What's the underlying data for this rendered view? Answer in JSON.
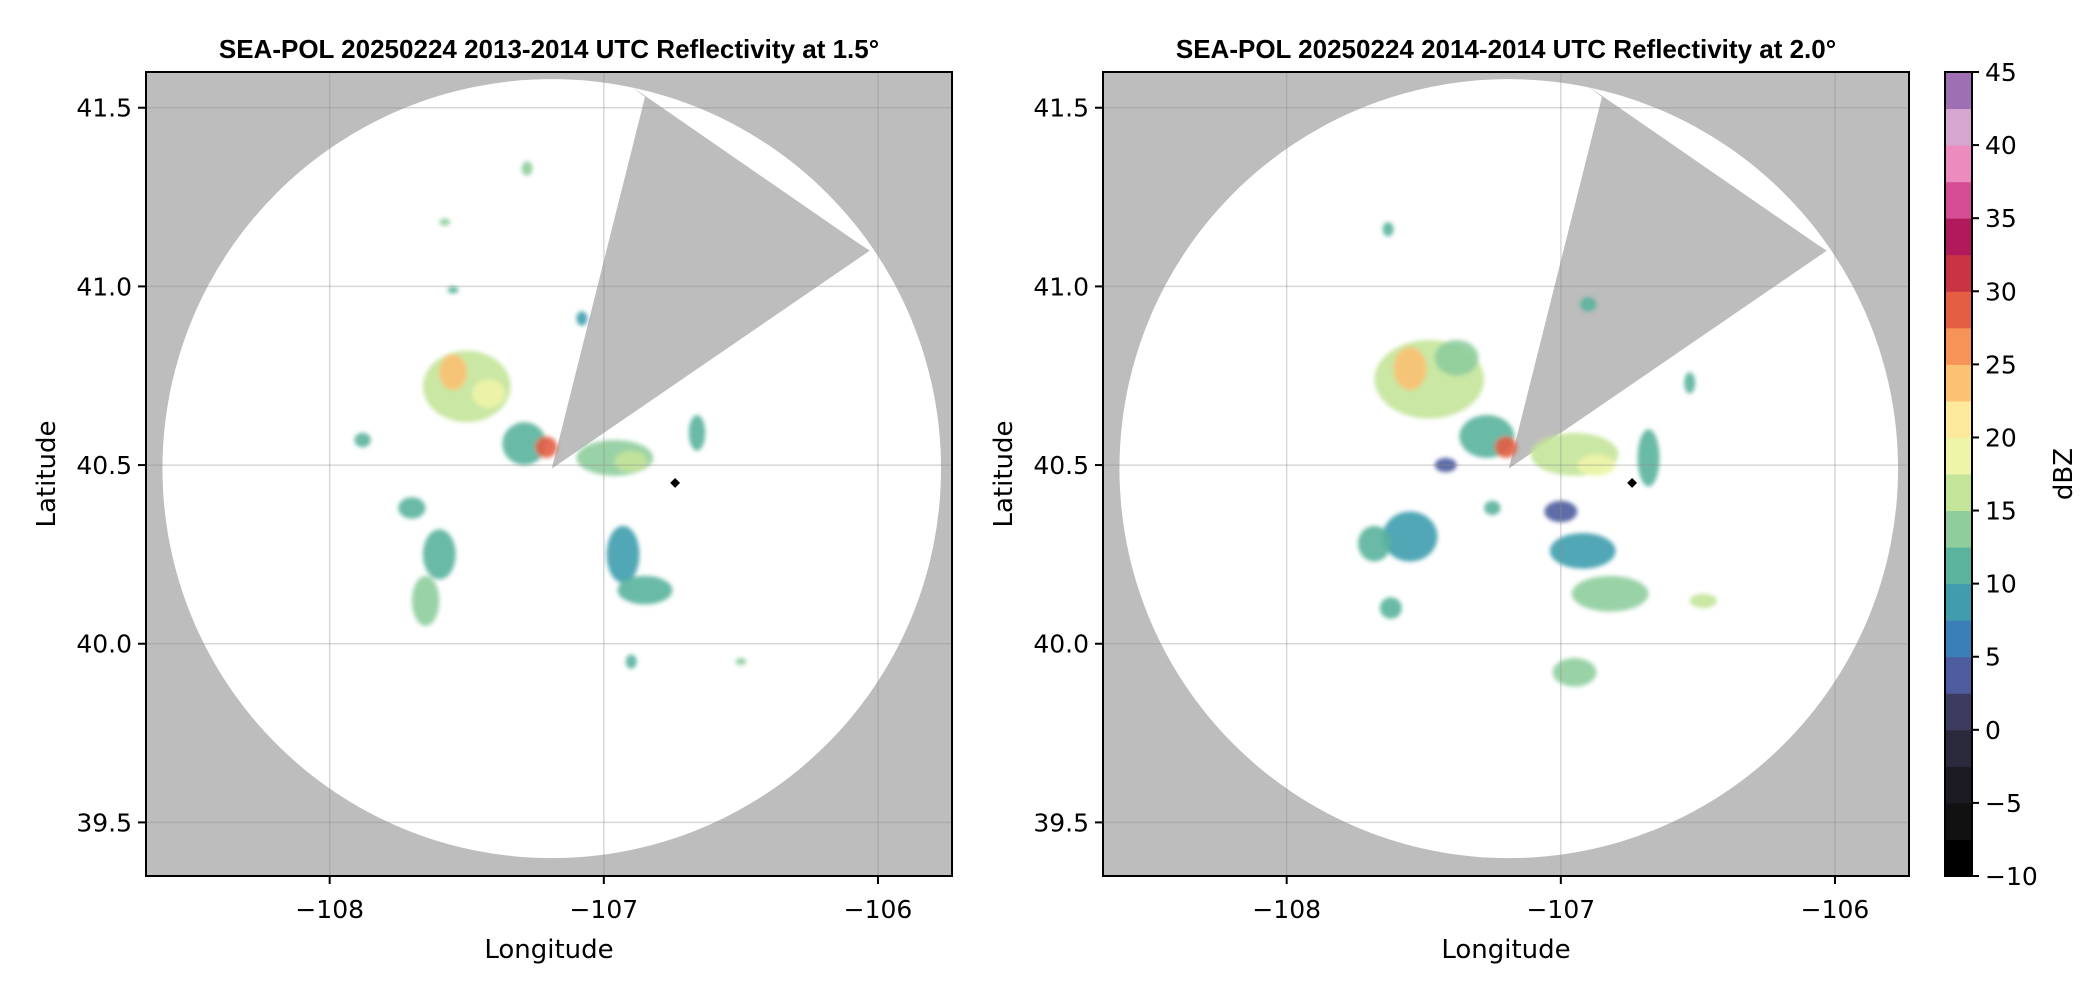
{
  "colors": {
    "no_coverage": "#bdbdbd",
    "coverage": "#ffffff",
    "grid": "#8c8c8c",
    "site_marker": "#000000"
  },
  "chart_data": {
    "type": "heatmap",
    "colorbar": {
      "label": "dBZ",
      "range": [
        -10,
        45
      ],
      "ticks": [
        "−10",
        "−5",
        "0",
        "5",
        "10",
        "15",
        "20",
        "25",
        "30",
        "35",
        "40",
        "45"
      ],
      "tick_values": [
        -10,
        -5,
        0,
        5,
        10,
        15,
        20,
        25,
        30,
        35,
        40,
        45
      ],
      "levels": [
        {
          "v": -10,
          "c": "#000000"
        },
        {
          "v": -7.5,
          "c": "#111111"
        },
        {
          "v": -5,
          "c": "#1c1a22"
        },
        {
          "v": -2.5,
          "c": "#2b2a3c"
        },
        {
          "v": 0,
          "c": "#3c3b60"
        },
        {
          "v": 2.5,
          "c": "#4d5c9e"
        },
        {
          "v": 5,
          "c": "#3b7fb8"
        },
        {
          "v": 7.5,
          "c": "#3f9dad"
        },
        {
          "v": 10,
          "c": "#5ab39c"
        },
        {
          "v": 12.5,
          "c": "#8fcd9d"
        },
        {
          "v": 15,
          "c": "#c4e49a"
        },
        {
          "v": 17.5,
          "c": "#eef5a9"
        },
        {
          "v": 20,
          "c": "#fde99b"
        },
        {
          "v": 22.5,
          "c": "#fcc172"
        },
        {
          "v": 25,
          "c": "#f79356"
        },
        {
          "v": 27.5,
          "c": "#e35e43"
        },
        {
          "v": 30,
          "c": "#c93445"
        },
        {
          "v": 32.5,
          "c": "#b01a5b"
        },
        {
          "v": 35,
          "c": "#d54d93"
        },
        {
          "v": 37.5,
          "c": "#ec8bbd"
        },
        {
          "v": 40,
          "c": "#d6a6d0"
        },
        {
          "v": 42.5,
          "c": "#9e6fb3"
        },
        {
          "v": 45,
          "c": "#5a2a86"
        }
      ]
    },
    "panels": [
      {
        "title": "SEA-POL 20250224 2013-2014 UTC Reflectivity at 1.5°",
        "xlabel": "Longitude",
        "ylabel": "Latitude",
        "xlim": [
          -108.67,
          -105.73
        ],
        "ylim": [
          39.35,
          41.6
        ],
        "xticks": [
          -108,
          -107,
          -106
        ],
        "xtick_labels": [
          "−108",
          "−107",
          "−106"
        ],
        "yticks": [
          39.5,
          40.0,
          40.5,
          41.0,
          41.5
        ],
        "ytick_labels": [
          "39.5",
          "40.0",
          "40.5",
          "41.0",
          "41.5"
        ],
        "grid": true,
        "radar_center": [
          -107.19,
          40.49
        ],
        "radar_radius_deg": [
          1.42,
          1.09
        ],
        "blocked_sector": {
          "polygon": [
            [
              -107.19,
              40.49
            ],
            [
              -106.85,
              41.53
            ],
            [
              -106.9,
              41.56
            ],
            [
              -106.07,
              41.12
            ],
            [
              -106.03,
              41.1
            ]
          ]
        },
        "site_marker": [
          -106.74,
          40.45
        ],
        "echoes": [
          {
            "lon": -107.5,
            "lat": 40.72,
            "rlon": 0.16,
            "rlat": 0.1,
            "dbz": 15
          },
          {
            "lon": -107.55,
            "lat": 40.76,
            "rlon": 0.05,
            "rlat": 0.05,
            "dbz": 24
          },
          {
            "lon": -107.42,
            "lat": 40.7,
            "rlon": 0.06,
            "rlat": 0.04,
            "dbz": 18
          },
          {
            "lon": -107.29,
            "lat": 40.56,
            "rlon": 0.08,
            "rlat": 0.06,
            "dbz": 12
          },
          {
            "lon": -107.21,
            "lat": 40.55,
            "rlon": 0.04,
            "rlat": 0.03,
            "dbz": 28
          },
          {
            "lon": -106.96,
            "lat": 40.52,
            "rlon": 0.14,
            "rlat": 0.05,
            "dbz": 13
          },
          {
            "lon": -106.9,
            "lat": 40.51,
            "rlon": 0.06,
            "rlat": 0.03,
            "dbz": 17
          },
          {
            "lon": -106.66,
            "lat": 40.59,
            "rlon": 0.03,
            "rlat": 0.05,
            "dbz": 10
          },
          {
            "lon": -107.7,
            "lat": 40.38,
            "rlon": 0.05,
            "rlat": 0.03,
            "dbz": 11
          },
          {
            "lon": -107.6,
            "lat": 40.25,
            "rlon": 0.06,
            "rlat": 0.07,
            "dbz": 10
          },
          {
            "lon": -107.65,
            "lat": 40.12,
            "rlon": 0.05,
            "rlat": 0.07,
            "dbz": 14
          },
          {
            "lon": -106.93,
            "lat": 40.25,
            "rlon": 0.06,
            "rlat": 0.08,
            "dbz": 8
          },
          {
            "lon": -106.85,
            "lat": 40.15,
            "rlon": 0.1,
            "rlat": 0.04,
            "dbz": 12
          },
          {
            "lon": -107.88,
            "lat": 40.57,
            "rlon": 0.03,
            "rlat": 0.02,
            "dbz": 11
          },
          {
            "lon": -107.28,
            "lat": 41.33,
            "rlon": 0.02,
            "rlat": 0.02,
            "dbz": 14
          },
          {
            "lon": -107.58,
            "lat": 41.18,
            "rlon": 0.02,
            "rlat": 0.01,
            "dbz": 13
          },
          {
            "lon": -107.55,
            "lat": 40.99,
            "rlon": 0.02,
            "rlat": 0.01,
            "dbz": 10
          },
          {
            "lon": -107.08,
            "lat": 40.91,
            "rlon": 0.02,
            "rlat": 0.02,
            "dbz": 9
          },
          {
            "lon": -106.5,
            "lat": 39.95,
            "rlon": 0.02,
            "rlat": 0.01,
            "dbz": 13
          },
          {
            "lon": -106.9,
            "lat": 39.95,
            "rlon": 0.02,
            "rlat": 0.02,
            "dbz": 12
          }
        ]
      },
      {
        "title": "SEA-POL 20250224 2014-2014 UTC Reflectivity at 2.0°",
        "xlabel": "Longitude",
        "ylabel": "Latitude",
        "xlim": [
          -108.67,
          -105.73
        ],
        "ylim": [
          39.35,
          41.6
        ],
        "xticks": [
          -108,
          -107,
          -106
        ],
        "xtick_labels": [
          "−108",
          "−107",
          "−106"
        ],
        "yticks": [
          39.5,
          40.0,
          40.5,
          41.0,
          41.5
        ],
        "ytick_labels": [
          "39.5",
          "40.0",
          "40.5",
          "41.0",
          "41.5"
        ],
        "grid": true,
        "radar_center": [
          -107.19,
          40.49
        ],
        "radar_radius_deg": [
          1.42,
          1.09
        ],
        "blocked_sector": {
          "polygon": [
            [
              -107.19,
              40.49
            ],
            [
              -106.85,
              41.53
            ],
            [
              -106.9,
              41.56
            ],
            [
              -106.07,
              41.12
            ],
            [
              -106.03,
              41.1
            ]
          ]
        },
        "site_marker": [
          -106.74,
          40.45
        ],
        "echoes": [
          {
            "lon": -107.48,
            "lat": 40.74,
            "rlon": 0.2,
            "rlat": 0.11,
            "dbz": 15
          },
          {
            "lon": -107.55,
            "lat": 40.77,
            "rlon": 0.06,
            "rlat": 0.06,
            "dbz": 24
          },
          {
            "lon": -107.38,
            "lat": 40.8,
            "rlon": 0.08,
            "rlat": 0.05,
            "dbz": 13
          },
          {
            "lon": -107.27,
            "lat": 40.58,
            "rlon": 0.1,
            "rlat": 0.06,
            "dbz": 12
          },
          {
            "lon": -107.2,
            "lat": 40.55,
            "rlon": 0.04,
            "rlat": 0.03,
            "dbz": 28
          },
          {
            "lon": -106.95,
            "lat": 40.53,
            "rlon": 0.16,
            "rlat": 0.06,
            "dbz": 15
          },
          {
            "lon": -106.87,
            "lat": 40.5,
            "rlon": 0.07,
            "rlat": 0.03,
            "dbz": 19
          },
          {
            "lon": -106.68,
            "lat": 40.52,
            "rlon": 0.04,
            "rlat": 0.08,
            "dbz": 11
          },
          {
            "lon": -106.53,
            "lat": 40.73,
            "rlon": 0.02,
            "rlat": 0.03,
            "dbz": 12
          },
          {
            "lon": -107.42,
            "lat": 40.5,
            "rlon": 0.04,
            "rlat": 0.02,
            "dbz": 3
          },
          {
            "lon": -107.55,
            "lat": 40.3,
            "rlon": 0.1,
            "rlat": 0.07,
            "dbz": 8
          },
          {
            "lon": -107.68,
            "lat": 40.28,
            "rlon": 0.06,
            "rlat": 0.05,
            "dbz": 11
          },
          {
            "lon": -107.62,
            "lat": 40.1,
            "rlon": 0.04,
            "rlat": 0.03,
            "dbz": 12
          },
          {
            "lon": -107.0,
            "lat": 40.37,
            "rlon": 0.06,
            "rlat": 0.03,
            "dbz": 4
          },
          {
            "lon": -106.92,
            "lat": 40.26,
            "rlon": 0.12,
            "rlat": 0.05,
            "dbz": 9
          },
          {
            "lon": -106.82,
            "lat": 40.14,
            "rlon": 0.14,
            "rlat": 0.05,
            "dbz": 13
          },
          {
            "lon": -106.48,
            "lat": 40.12,
            "rlon": 0.05,
            "rlat": 0.02,
            "dbz": 16
          },
          {
            "lon": -106.95,
            "lat": 39.92,
            "rlon": 0.08,
            "rlat": 0.04,
            "dbz": 13
          },
          {
            "lon": -107.63,
            "lat": 41.16,
            "rlon": 0.02,
            "rlat": 0.02,
            "dbz": 12
          },
          {
            "lon": -106.9,
            "lat": 40.95,
            "rlon": 0.03,
            "rlat": 0.02,
            "dbz": 10
          },
          {
            "lon": -107.25,
            "lat": 40.38,
            "rlon": 0.03,
            "rlat": 0.02,
            "dbz": 11
          }
        ]
      }
    ]
  }
}
